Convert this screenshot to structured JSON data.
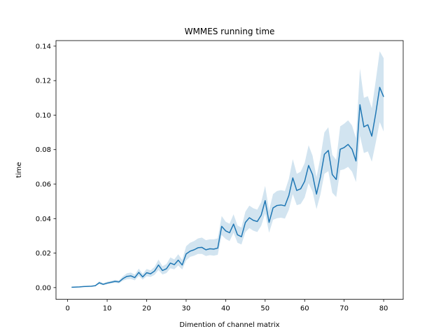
{
  "chart_data": {
    "type": "line",
    "title": "WMMES running time",
    "xlabel": "Dimention of channel matrix",
    "ylabel": "time",
    "xlim": [
      -2.95,
      84.95
    ],
    "ylim": [
      -0.0068,
      0.1432
    ],
    "xticks": [
      0,
      10,
      20,
      30,
      40,
      50,
      60,
      70,
      80
    ],
    "xtick_labels": [
      "0",
      "10",
      "20",
      "30",
      "40",
      "50",
      "60",
      "70",
      "80"
    ],
    "yticks": [
      0.0,
      0.02,
      0.04,
      0.06,
      0.08,
      0.1,
      0.12,
      0.14
    ],
    "ytick_labels": [
      "0.00",
      "0.02",
      "0.04",
      "0.06",
      "0.08",
      "0.10",
      "0.12",
      "0.14"
    ],
    "grid": false,
    "legend": "none",
    "colors": {
      "line": "#1f77b4",
      "band": "#1f77b4"
    },
    "x": [
      1,
      2,
      3,
      4,
      5,
      6,
      7,
      8,
      9,
      10,
      11,
      12,
      13,
      14,
      15,
      16,
      17,
      18,
      19,
      20,
      21,
      22,
      23,
      24,
      25,
      26,
      27,
      28,
      29,
      30,
      31,
      32,
      33,
      34,
      35,
      36,
      37,
      38,
      39,
      40,
      41,
      42,
      43,
      44,
      45,
      46,
      47,
      48,
      49,
      50,
      51,
      52,
      53,
      54,
      55,
      56,
      57,
      58,
      59,
      60,
      61,
      62,
      63,
      64,
      65,
      66,
      67,
      68,
      69,
      70,
      71,
      72,
      73,
      74,
      75,
      76,
      77,
      78,
      79,
      80
    ],
    "series": [
      {
        "values": [
          0.0002,
          0.0003,
          0.0004,
          0.0006,
          0.0007,
          0.0008,
          0.0011,
          0.0028,
          0.0019,
          0.0026,
          0.0031,
          0.0036,
          0.0033,
          0.0052,
          0.0065,
          0.0068,
          0.0058,
          0.0088,
          0.0062,
          0.0086,
          0.008,
          0.0096,
          0.0131,
          0.0099,
          0.0109,
          0.0142,
          0.0133,
          0.0159,
          0.0131,
          0.0195,
          0.0211,
          0.0219,
          0.0231,
          0.0233,
          0.0219,
          0.0225,
          0.0223,
          0.0229,
          0.0355,
          0.0329,
          0.0318,
          0.0368,
          0.0306,
          0.0295,
          0.0378,
          0.0405,
          0.039,
          0.0383,
          0.042,
          0.0504,
          0.0378,
          0.0462,
          0.0476,
          0.0479,
          0.0474,
          0.0534,
          0.0636,
          0.0563,
          0.0573,
          0.0616,
          0.0708,
          0.0655,
          0.0542,
          0.0642,
          0.0773,
          0.0795,
          0.0655,
          0.0627,
          0.0802,
          0.0812,
          0.083,
          0.0802,
          0.0734,
          0.106,
          0.0932,
          0.0944,
          0.0878,
          0.101,
          0.1161,
          0.1106
        ],
        "lower": [
          0.0001,
          0.0002,
          0.0003,
          0.0004,
          0.0005,
          0.0006,
          0.0008,
          0.002,
          0.0014,
          0.0019,
          0.0024,
          0.0028,
          0.0025,
          0.004,
          0.0048,
          0.005,
          0.0042,
          0.0068,
          0.0046,
          0.0066,
          0.0062,
          0.0074,
          0.0102,
          0.0076,
          0.0084,
          0.0112,
          0.0106,
          0.0128,
          0.0105,
          0.0158,
          0.0178,
          0.0185,
          0.0195,
          0.0195,
          0.0183,
          0.0188,
          0.0185,
          0.019,
          0.0305,
          0.0282,
          0.027,
          0.0318,
          0.026,
          0.025,
          0.0322,
          0.0345,
          0.033,
          0.0322,
          0.0358,
          0.043,
          0.0318,
          0.0393,
          0.0402,
          0.0405,
          0.04,
          0.0451,
          0.0542,
          0.0478,
          0.0485,
          0.0522,
          0.0606,
          0.0556,
          0.0455,
          0.054,
          0.066,
          0.0675,
          0.055,
          0.0525,
          0.068,
          0.0686,
          0.07,
          0.0672,
          0.0612,
          0.088,
          0.078,
          0.079,
          0.073,
          0.084,
          0.096,
          0.0905
        ],
        "upper": [
          0.0003,
          0.0004,
          0.0005,
          0.0008,
          0.0009,
          0.001,
          0.0014,
          0.0037,
          0.0025,
          0.0034,
          0.0039,
          0.0045,
          0.0042,
          0.0066,
          0.0083,
          0.0087,
          0.0075,
          0.011,
          0.0079,
          0.0108,
          0.01,
          0.012,
          0.0162,
          0.0124,
          0.0136,
          0.0175,
          0.0163,
          0.0193,
          0.016,
          0.024,
          0.026,
          0.027,
          0.0285,
          0.029,
          0.0275,
          0.028,
          0.028,
          0.0285,
          0.0415,
          0.0382,
          0.037,
          0.0425,
          0.036,
          0.0348,
          0.044,
          0.0475,
          0.046,
          0.0452,
          0.0495,
          0.059,
          0.0447,
          0.0542,
          0.056,
          0.0565,
          0.056,
          0.063,
          0.0745,
          0.066,
          0.0672,
          0.0722,
          0.0825,
          0.0765,
          0.064,
          0.0755,
          0.09,
          0.093,
          0.077,
          0.074,
          0.0935,
          0.095,
          0.097,
          0.094,
          0.0865,
          0.127,
          0.11,
          0.111,
          0.104,
          0.12,
          0.137,
          0.133
        ]
      }
    ]
  }
}
